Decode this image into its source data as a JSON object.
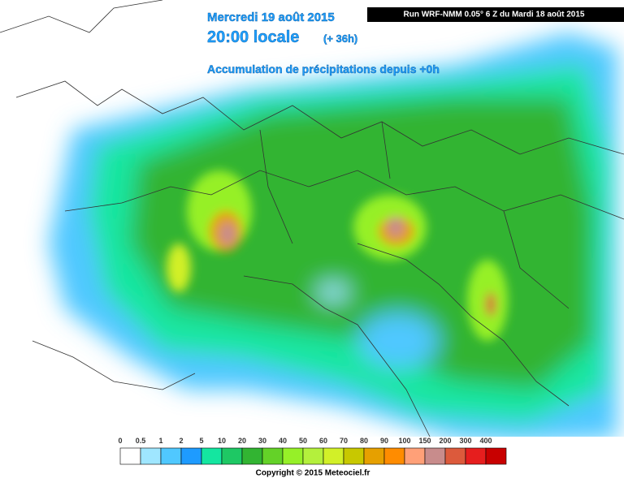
{
  "header": {
    "date": "Mercredi 19 août 2015",
    "time": "20:00 locale",
    "lead": "(+ 36h)",
    "product": "Accumulation de précipitations depuis +0h",
    "run": "Run WRF-NMM 0.05° 6 Z du Mardi 18 août 2015"
  },
  "legend": {
    "items": [
      {
        "value": 0,
        "color": "#ffffff"
      },
      {
        "value": 0.5,
        "color": "#9fe6ff"
      },
      {
        "value": 1,
        "color": "#50c8ff"
      },
      {
        "value": 2,
        "color": "#1e9bff"
      },
      {
        "value": 5,
        "color": "#14e6a0"
      },
      {
        "value": 10,
        "color": "#1ec864"
      },
      {
        "value": 20,
        "color": "#32b432"
      },
      {
        "value": 30,
        "color": "#64d228"
      },
      {
        "value": 40,
        "color": "#96f028"
      },
      {
        "value": 50,
        "color": "#b4f03c"
      },
      {
        "value": 60,
        "color": "#d2f028"
      },
      {
        "value": 70,
        "color": "#c8c800"
      },
      {
        "value": 80,
        "color": "#e6a000"
      },
      {
        "value": 90,
        "color": "#ff8c00"
      },
      {
        "value": 100,
        "color": "#ffa078"
      },
      {
        "value": 150,
        "color": "#c88c8c"
      },
      {
        "value": 200,
        "color": "#dc5a3c"
      },
      {
        "value": 300,
        "color": "#e61e1e"
      },
      {
        "value": 400,
        "color": "#c80000"
      }
    ]
  },
  "footer": {
    "copyright": "Copyright © 2015 Meteociel.fr"
  }
}
